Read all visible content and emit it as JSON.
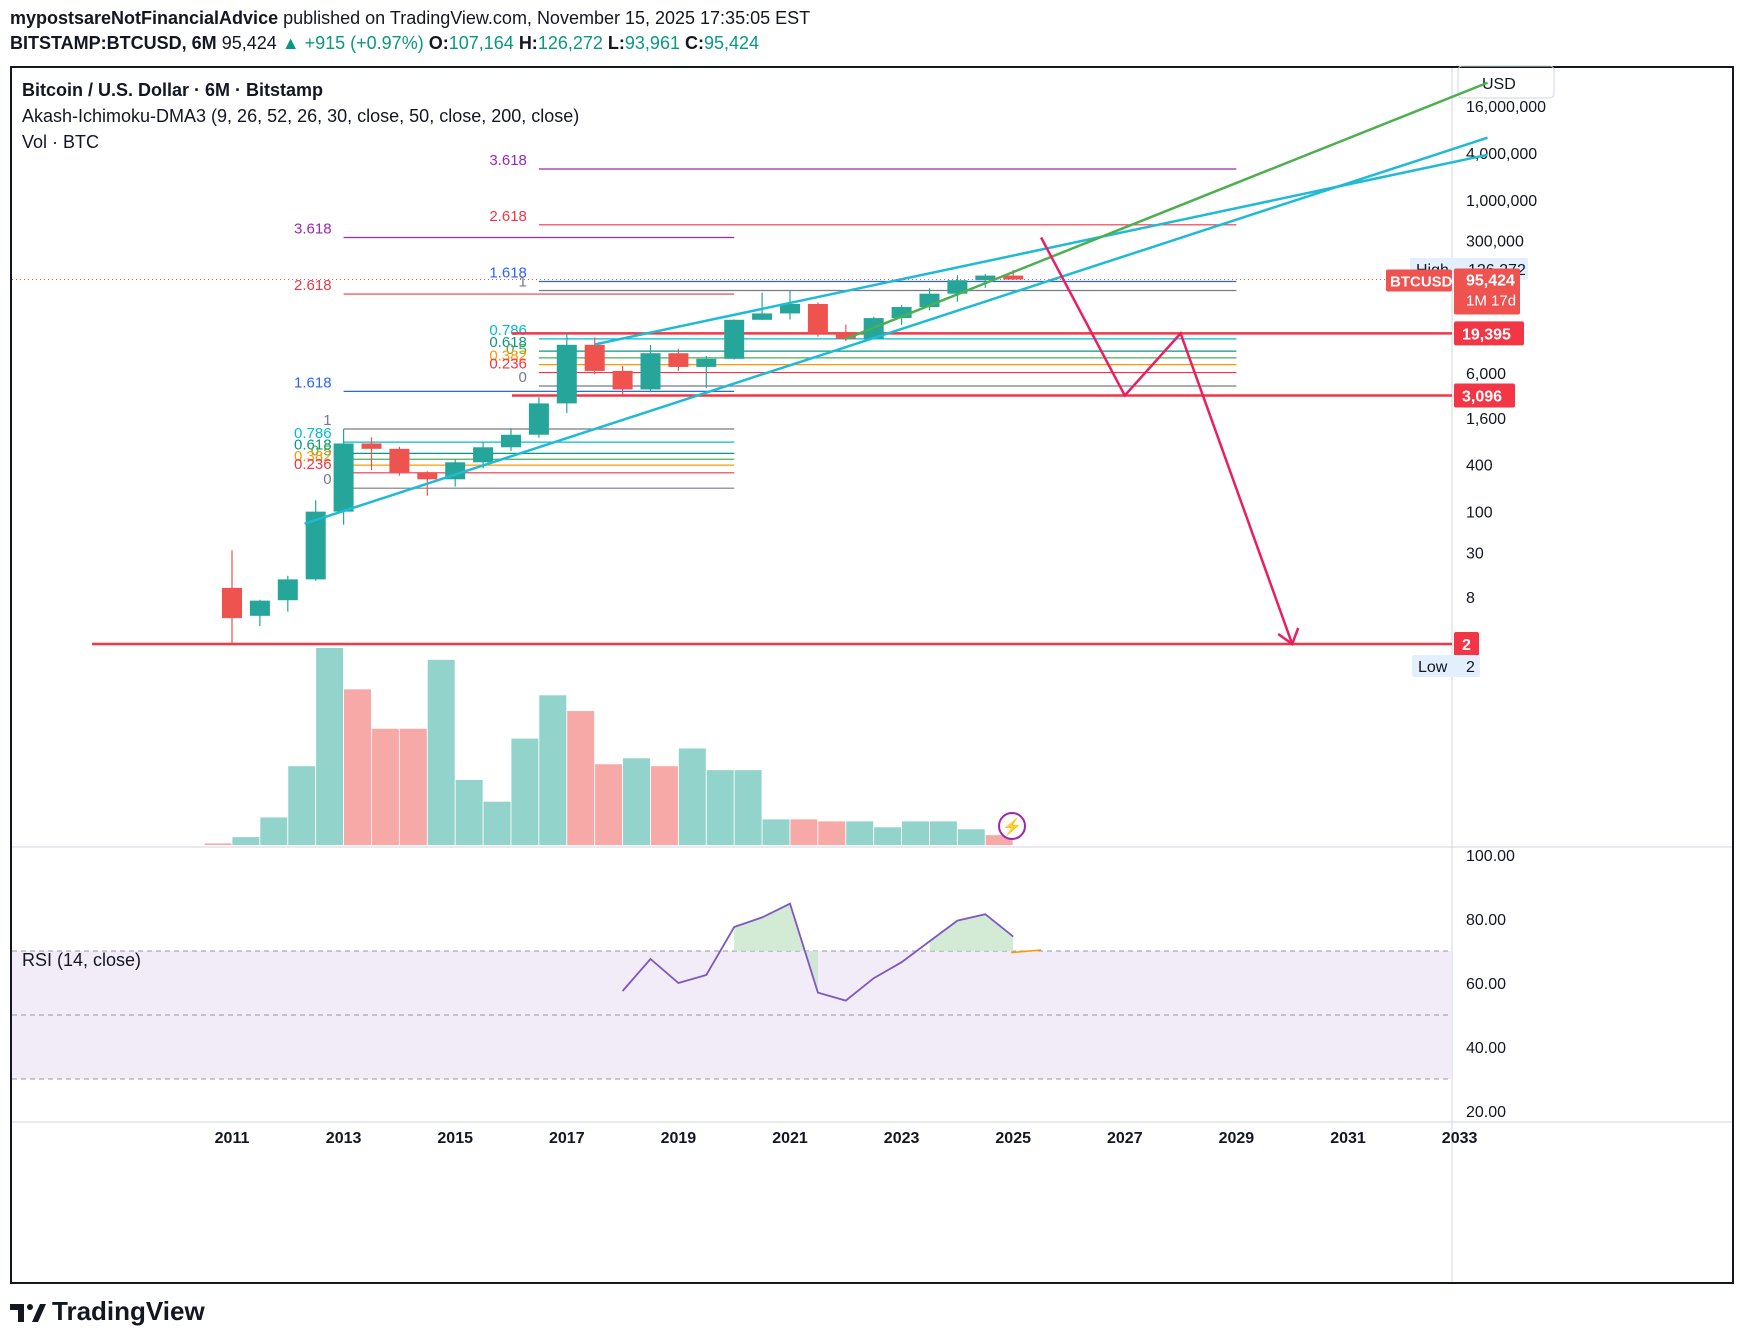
{
  "header": {
    "author": "mypostsareNotFinancialAdvice",
    "published": "published on TradingView.com, November 15, 2025 17:35:05 EST",
    "symbol": "BITSTAMP:BTCUSD, 6M",
    "last": "95,424",
    "change": "+915 (+0.97%)",
    "open_label": "O:",
    "open": "107,164",
    "high_label": "H:",
    "high": "126,272",
    "low_label": "L:",
    "low": "93,961",
    "close_label": "C:",
    "close": "95,424"
  },
  "legend": {
    "title": "Bitcoin / U.S. Dollar · 6M · Bitstamp",
    "indicator": "Akash-Ichimoku-DMA3 (9, 26, 52, 26, 30, close, 50, close, 200, close)",
    "volume": "Vol · BTC",
    "rsi": "RSI (14, close)"
  },
  "logo": "TradingView",
  "colors": {
    "up": "#26a69a",
    "down": "#ef5350",
    "upVol": "#92d3cb",
    "downVol": "#f7a9a7",
    "red": "#f23645",
    "cyan": "#1fbad6",
    "green": "#4caf50",
    "magenta": "#e91e63",
    "rsi": "#7e57c2"
  },
  "chart_data": [
    {
      "type": "candlestick",
      "title": "Bitcoin / U.S. Dollar · 6M · Bitstamp",
      "scale": "log",
      "currency": "USD",
      "x_ticks": [
        "2011",
        "2013",
        "2015",
        "2017",
        "2019",
        "2021",
        "2023",
        "2025",
        "2027",
        "2029",
        "2031",
        "2033"
      ],
      "y_ticks": [
        {
          "label": "16,000,000",
          "value": 16000000
        },
        {
          "label": "4,000,000",
          "value": 4000000
        },
        {
          "label": "1,000,000",
          "value": 1000000
        },
        {
          "label": "300,000",
          "value": 300000
        },
        {
          "label": "6,000",
          "value": 6000
        },
        {
          "label": "1,600",
          "value": 1600
        },
        {
          "label": "400",
          "value": 400
        },
        {
          "label": "100",
          "value": 100
        },
        {
          "label": "30",
          "value": 30
        },
        {
          "label": "8",
          "value": 8
        }
      ],
      "candles": [
        {
          "t": 2011.0,
          "o": 10.5,
          "h": 32,
          "l": 2,
          "c": 4.3
        },
        {
          "t": 2011.5,
          "o": 4.6,
          "h": 7.4,
          "l": 3.4,
          "c": 7.2
        },
        {
          "t": 2012.0,
          "o": 7.3,
          "h": 15,
          "l": 5.2,
          "c": 13.5
        },
        {
          "t": 2012.5,
          "o": 13.5,
          "h": 140,
          "l": 13,
          "c": 100
        },
        {
          "t": 2013.0,
          "o": 100,
          "h": 1150,
          "l": 68,
          "c": 750
        },
        {
          "t": 2013.5,
          "o": 750,
          "h": 900,
          "l": 340,
          "c": 640
        },
        {
          "t": 2014.0,
          "o": 640,
          "h": 680,
          "l": 290,
          "c": 320
        },
        {
          "t": 2014.5,
          "o": 320,
          "h": 330,
          "l": 160,
          "c": 260
        },
        {
          "t": 2015.0,
          "o": 260,
          "h": 470,
          "l": 210,
          "c": 430
        },
        {
          "t": 2015.5,
          "o": 430,
          "h": 780,
          "l": 360,
          "c": 670
        },
        {
          "t": 2016.0,
          "o": 670,
          "h": 1180,
          "l": 600,
          "c": 970
        },
        {
          "t": 2016.5,
          "o": 970,
          "h": 2950,
          "l": 890,
          "c": 2450
        },
        {
          "t": 2017.0,
          "o": 2450,
          "h": 19700,
          "l": 1850,
          "c": 13850
        },
        {
          "t": 2017.5,
          "o": 13850,
          "h": 17200,
          "l": 5800,
          "c": 6400
        },
        {
          "t": 2018.0,
          "o": 6400,
          "h": 7400,
          "l": 3120,
          "c": 3700
        },
        {
          "t": 2018.5,
          "o": 3700,
          "h": 13800,
          "l": 3400,
          "c": 10800
        },
        {
          "t": 2019.0,
          "o": 10800,
          "h": 12300,
          "l": 6400,
          "c": 7200
        },
        {
          "t": 2019.5,
          "o": 7200,
          "h": 10000,
          "l": 3850,
          "c": 9150
        },
        {
          "t": 2020.0,
          "o": 9150,
          "h": 29300,
          "l": 9000,
          "c": 29000
        },
        {
          "t": 2020.5,
          "o": 29000,
          "h": 64800,
          "l": 28800,
          "c": 35000
        },
        {
          "t": 2021.0,
          "o": 35000,
          "h": 69000,
          "l": 29300,
          "c": 46300
        },
        {
          "t": 2021.5,
          "o": 46300,
          "h": 48200,
          "l": 17600,
          "c": 19400
        },
        {
          "t": 2022.0,
          "o": 19400,
          "h": 25200,
          "l": 15500,
          "c": 16500
        },
        {
          "t": 2022.5,
          "o": 16500,
          "h": 31800,
          "l": 16500,
          "c": 30500
        },
        {
          "t": 2023.0,
          "o": 30500,
          "h": 44700,
          "l": 24900,
          "c": 42300
        },
        {
          "t": 2023.5,
          "o": 42300,
          "h": 73700,
          "l": 38500,
          "c": 62700
        },
        {
          "t": 2024.0,
          "o": 62700,
          "h": 108300,
          "l": 49500,
          "c": 93400
        },
        {
          "t": 2024.5,
          "o": 93400,
          "h": 112000,
          "l": 74500,
          "c": 107164
        },
        {
          "t": 2025.0,
          "o": 107164,
          "h": 126272,
          "l": 93961,
          "c": 95424
        }
      ],
      "trendlines": [
        {
          "color": "cyan",
          "from": [
            2012.3,
            70
          ],
          "to": [
            2033.5,
            6300000
          ]
        },
        {
          "color": "cyan",
          "from": [
            2017.5,
            14000
          ],
          "to": [
            2033.5,
            3800000
          ]
        },
        {
          "color": "green",
          "from": [
            2022.0,
            16500
          ],
          "to": [
            2033.5,
            32000000
          ]
        }
      ],
      "projection": {
        "color": "magenta",
        "points": [
          [
            2025.5,
            330000
          ],
          [
            2027.0,
            3096
          ],
          [
            2028.0,
            19395
          ],
          [
            2030.0,
            2
          ]
        ]
      },
      "fib_sets": [
        {
          "anchor_x": [
            2013.0,
            2020.0
          ],
          "labels": [
            {
              "label": "3.618",
              "value": 330000,
              "color": "#9c27b0"
            },
            {
              "label": "2.618",
              "value": 62000,
              "color": "#f23645"
            },
            {
              "label": "1.618",
              "value": 3500,
              "color": "#2962ff"
            },
            {
              "label": "1",
              "value": 1150,
              "color": "#787b86"
            },
            {
              "label": "0.786",
              "value": 780,
              "color": "#00bcd4"
            },
            {
              "label": "0.618",
              "value": 560,
              "color": "#089981"
            },
            {
              "label": "0.5",
              "value": 470,
              "color": "#4caf50"
            },
            {
              "label": "0.382",
              "value": 395,
              "color": "#ff9800"
            },
            {
              "label": "0.236",
              "value": 315,
              "color": "#f23645"
            },
            {
              "label": "0",
              "value": 200,
              "color": "#787b86"
            }
          ]
        },
        {
          "anchor_x": [
            2016.5,
            2029.0
          ],
          "labels": [
            {
              "label": "3.618",
              "value": 2500000,
              "color": "#9c27b0"
            },
            {
              "label": "2.618",
              "value": 480000,
              "color": "#f23645"
            },
            {
              "label": "1.618",
              "value": 90000,
              "color": "#2962ff"
            },
            {
              "label": "1",
              "value": 69000,
              "color": "#787b86"
            },
            {
              "label": "0.786",
              "value": 16500,
              "color": "#00bcd4"
            },
            {
              "label": "0.618",
              "value": 11500,
              "color": "#089981"
            },
            {
              "label": "0.5",
              "value": 9400,
              "color": "#4caf50"
            },
            {
              "label": "0.382",
              "value": 7700,
              "color": "#ff9800"
            },
            {
              "label": "0.236",
              "value": 6100,
              "color": "#f23645"
            },
            {
              "label": "0",
              "value": 4100,
              "color": "#787b86"
            }
          ]
        }
      ],
      "levels": [
        {
          "label": "19,395",
          "value": 19395,
          "color": "#f23645"
        },
        {
          "label": "3,096",
          "value": 3096,
          "color": "#f23645"
        },
        {
          "label": "2",
          "value": 2,
          "color": "#f23645"
        }
      ],
      "price_tags": {
        "high_label": "High",
        "high_value": "126,272",
        "symbol": "BTCUSD",
        "price": "95,424",
        "countdown": "1M 17d",
        "low_label": "Low",
        "low_value": "2"
      }
    },
    {
      "type": "bar",
      "title": "Vol · BTC",
      "volume": [
        {
          "t": 2011.0,
          "v": 0.8,
          "up": false
        },
        {
          "t": 2011.5,
          "v": 4,
          "up": true
        },
        {
          "t": 2012.0,
          "v": 14,
          "up": true
        },
        {
          "t": 2012.5,
          "v": 40,
          "up": true
        },
        {
          "t": 2013.0,
          "v": 100,
          "up": true
        },
        {
          "t": 2013.5,
          "v": 79,
          "up": false
        },
        {
          "t": 2014.0,
          "v": 59,
          "up": false
        },
        {
          "t": 2014.5,
          "v": 59,
          "up": false
        },
        {
          "t": 2015.0,
          "v": 94,
          "up": true
        },
        {
          "t": 2015.5,
          "v": 33,
          "up": true
        },
        {
          "t": 2016.0,
          "v": 22,
          "up": true
        },
        {
          "t": 2016.5,
          "v": 54,
          "up": true
        },
        {
          "t": 2017.0,
          "v": 76,
          "up": true
        },
        {
          "t": 2017.5,
          "v": 68,
          "up": false
        },
        {
          "t": 2018.0,
          "v": 41,
          "up": false
        },
        {
          "t": 2018.5,
          "v": 44,
          "up": true
        },
        {
          "t": 2019.0,
          "v": 40,
          "up": false
        },
        {
          "t": 2019.5,
          "v": 49,
          "up": true
        },
        {
          "t": 2020.0,
          "v": 38,
          "up": true
        },
        {
          "t": 2020.5,
          "v": 38,
          "up": true
        },
        {
          "t": 2021.0,
          "v": 13,
          "up": true
        },
        {
          "t": 2021.5,
          "v": 13,
          "up": false
        },
        {
          "t": 2022.0,
          "v": 12,
          "up": false
        },
        {
          "t": 2022.5,
          "v": 12,
          "up": true
        },
        {
          "t": 2023.0,
          "v": 9,
          "up": true
        },
        {
          "t": 2023.5,
          "v": 12,
          "up": true
        },
        {
          "t": 2024.0,
          "v": 12,
          "up": true
        },
        {
          "t": 2024.5,
          "v": 8,
          "up": true
        },
        {
          "t": 2025.0,
          "v": 5,
          "up": false
        }
      ]
    },
    {
      "type": "line",
      "title": "RSI (14, close)",
      "ylim": [
        20,
        100
      ],
      "y_ticks": [
        "100.00",
        "80.00",
        "60.00",
        "40.00",
        "20.00"
      ],
      "bands": {
        "upper": 70,
        "middle": 50,
        "lower": 30
      },
      "x": [
        2018.0,
        2018.5,
        2019.0,
        2019.5,
        2020.0,
        2020.5,
        2021.0,
        2021.5,
        2022.0,
        2022.5,
        2023.0,
        2023.5,
        2024.0,
        2024.5,
        2025.0
      ],
      "values": [
        57.5,
        67.5,
        60,
        62.5,
        77.5,
        80.5,
        84.8,
        57,
        54.5,
        61.5,
        66.5,
        73,
        79.5,
        81.5,
        74.5
      ]
    }
  ]
}
